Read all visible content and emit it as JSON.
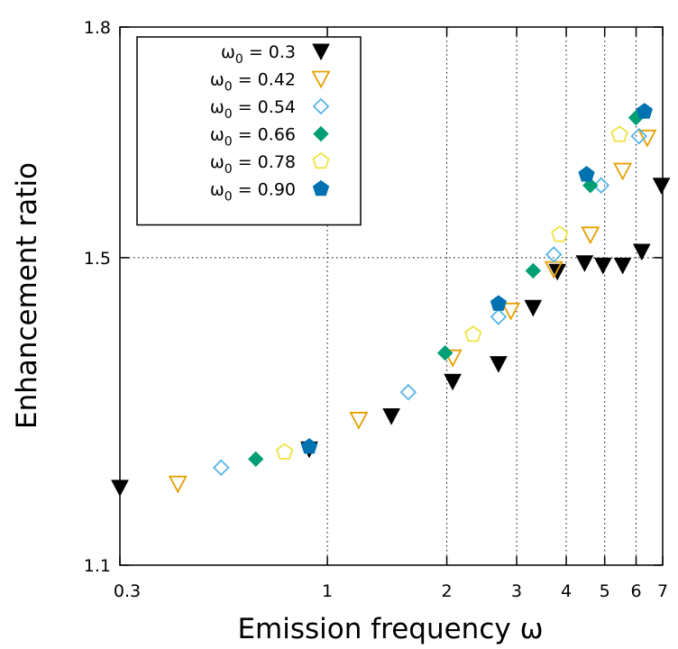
{
  "chart_data": {
    "type": "scatter",
    "title": "",
    "xlabel": "Emission frequency ω",
    "ylabel": "Enhancement ratio",
    "x_scale": "log",
    "xlim": [
      0.3,
      7
    ],
    "ylim": [
      1.1,
      1.8
    ],
    "x_ticks": [
      {
        "value": 0.3,
        "label": "0.3"
      },
      {
        "value": 1,
        "label": "1"
      },
      {
        "value": 2,
        "label": "2"
      },
      {
        "value": 3,
        "label": "3"
      },
      {
        "value": 4,
        "label": "4"
      },
      {
        "value": 5,
        "label": "5"
      },
      {
        "value": 6,
        "label": "6"
      },
      {
        "value": 7,
        "label": "7"
      }
    ],
    "y_ticks": [
      {
        "value": 1.1,
        "label": "1.1"
      },
      {
        "value": 1.5,
        "label": "1.5"
      },
      {
        "value": 1.8,
        "label": "1.8"
      }
    ],
    "grid": {
      "x": [
        1,
        2,
        3,
        4,
        5,
        6
      ],
      "y": [
        1.5
      ],
      "style": "dotted"
    },
    "legend": {
      "position": "top-left",
      "prefix": "ω",
      "subscript": "0",
      "separator": " = "
    },
    "series": [
      {
        "name": "0.3",
        "marker": "triangle-down",
        "filled": true,
        "color": "#000000",
        "points": [
          [
            0.3,
            1.201
          ],
          [
            0.9,
            1.251
          ],
          [
            1.45,
            1.294
          ],
          [
            2.07,
            1.339
          ],
          [
            2.7,
            1.362
          ],
          [
            3.3,
            1.435
          ],
          [
            3.8,
            1.482
          ],
          [
            4.45,
            1.493
          ],
          [
            4.95,
            1.49
          ],
          [
            5.55,
            1.49
          ],
          [
            6.2,
            1.508
          ],
          [
            6.95,
            1.594
          ]
        ]
      },
      {
        "name": "0.42",
        "marker": "triangle-down",
        "filled": false,
        "color": "#e69f00",
        "points": [
          [
            0.42,
            1.206
          ],
          [
            1.2,
            1.289
          ],
          [
            2.07,
            1.37
          ],
          [
            2.9,
            1.431
          ],
          [
            3.72,
            1.485
          ],
          [
            4.6,
            1.53
          ],
          [
            5.55,
            1.613
          ],
          [
            6.4,
            1.656
          ]
        ]
      },
      {
        "name": "0.54",
        "marker": "diamond",
        "filled": false,
        "color": "#56b4e9",
        "points": [
          [
            0.54,
            1.227
          ],
          [
            1.6,
            1.325
          ],
          [
            2.7,
            1.423
          ],
          [
            3.72,
            1.504
          ],
          [
            4.9,
            1.594
          ],
          [
            6.1,
            1.658
          ]
        ]
      },
      {
        "name": "0.66",
        "marker": "diamond",
        "filled": true,
        "color": "#009e73",
        "points": [
          [
            0.66,
            1.238
          ],
          [
            1.98,
            1.376
          ],
          [
            3.3,
            1.483
          ],
          [
            4.6,
            1.594
          ],
          [
            6.0,
            1.682
          ]
        ]
      },
      {
        "name": "0.78",
        "marker": "pentagon",
        "filled": false,
        "color": "#f0e442",
        "points": [
          [
            0.78,
            1.247
          ],
          [
            2.33,
            1.4
          ],
          [
            3.85,
            1.53
          ],
          [
            5.45,
            1.66
          ]
        ]
      },
      {
        "name": "0.90",
        "marker": "pentagon",
        "filled": true,
        "color": "#0072b2",
        "points": [
          [
            0.9,
            1.254
          ],
          [
            2.7,
            1.44
          ],
          [
            4.5,
            1.608
          ],
          [
            6.3,
            1.69
          ]
        ]
      }
    ]
  }
}
